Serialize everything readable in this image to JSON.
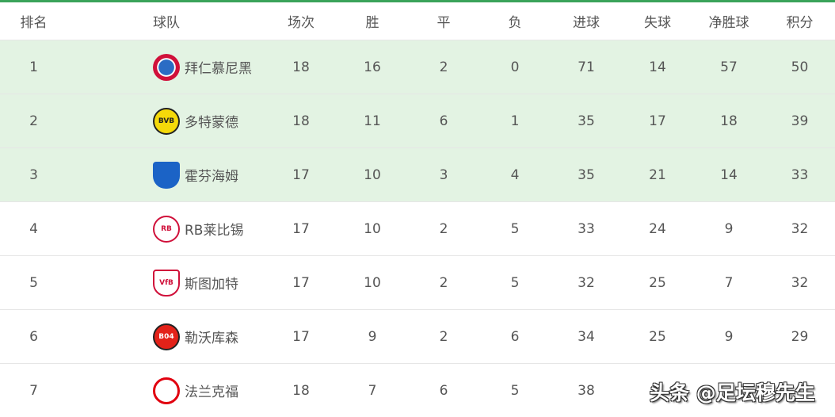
{
  "headers": [
    "排名",
    "球队",
    "场次",
    "胜",
    "平",
    "负",
    "进球",
    "失球",
    "净胜球",
    "积分"
  ],
  "colors": {
    "top_highlight": "#e3f3e3",
    "accent": "#3aa35a"
  },
  "rows": [
    {
      "rank": "1",
      "team": "拜仁慕尼黑",
      "logo": "bayern-logo",
      "played": "18",
      "w": "16",
      "d": "2",
      "l": "0",
      "gf": "71",
      "ga": "14",
      "gd": "57",
      "pts": "50"
    },
    {
      "rank": "2",
      "team": "多特蒙德",
      "logo": "dortmund-logo",
      "played": "18",
      "w": "11",
      "d": "6",
      "l": "1",
      "gf": "35",
      "ga": "17",
      "gd": "18",
      "pts": "39"
    },
    {
      "rank": "3",
      "team": "霍芬海姆",
      "logo": "hoffenheim-logo",
      "played": "17",
      "w": "10",
      "d": "3",
      "l": "4",
      "gf": "35",
      "ga": "21",
      "gd": "14",
      "pts": "33"
    },
    {
      "rank": "4",
      "team": "RB莱比锡",
      "logo": "leipzig-logo",
      "played": "17",
      "w": "10",
      "d": "2",
      "l": "5",
      "gf": "33",
      "ga": "24",
      "gd": "9",
      "pts": "32"
    },
    {
      "rank": "5",
      "team": "斯图加特",
      "logo": "stuttgart-logo",
      "played": "17",
      "w": "10",
      "d": "2",
      "l": "5",
      "gf": "32",
      "ga": "25",
      "gd": "7",
      "pts": "32"
    },
    {
      "rank": "6",
      "team": "勒沃库森",
      "logo": "leverkusen-logo",
      "played": "17",
      "w": "9",
      "d": "2",
      "l": "6",
      "gf": "34",
      "ga": "25",
      "gd": "9",
      "pts": "29"
    },
    {
      "rank": "7",
      "team": "法兰克福",
      "logo": "frankfurt-logo",
      "played": "18",
      "w": "7",
      "d": "6",
      "l": "5",
      "gf": "38",
      "ga": "",
      "gd": "",
      "pts": ""
    }
  ],
  "watermark": "头条 @足坛穆先生"
}
